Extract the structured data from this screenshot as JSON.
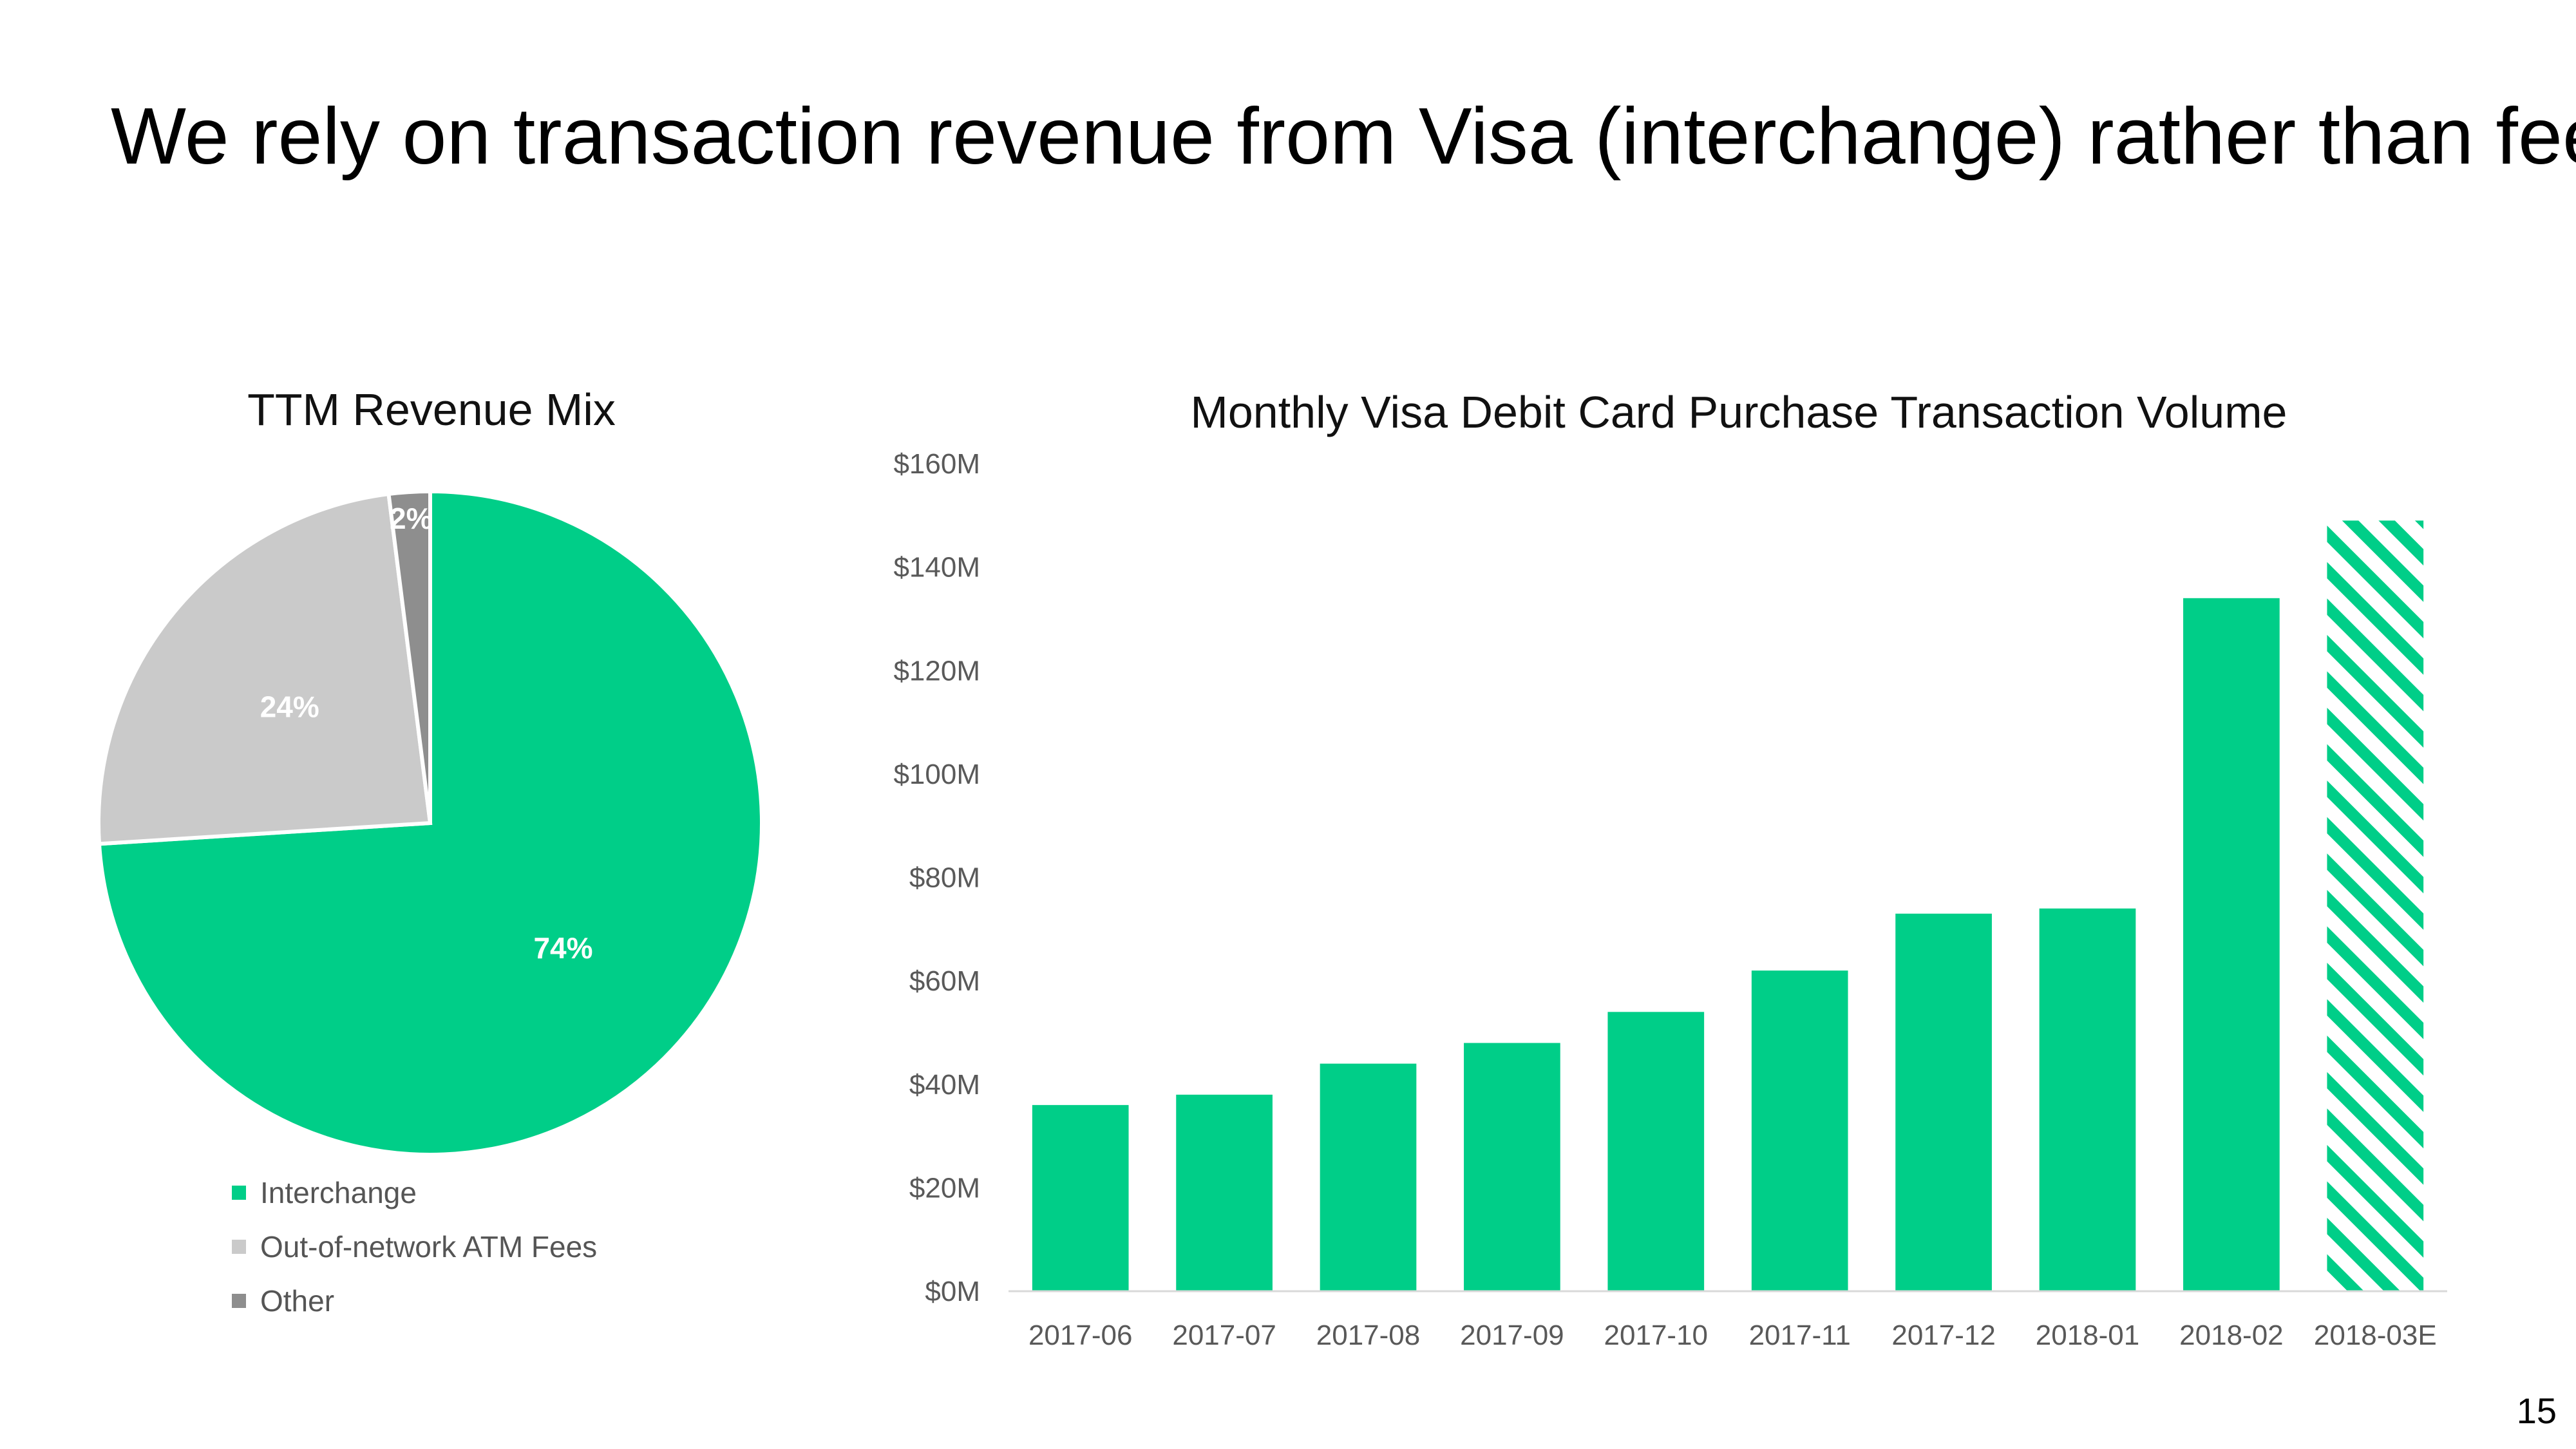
{
  "slide": {
    "title": "We rely on transaction revenue from Visa (interchange) rather than fees",
    "page_number": "15"
  },
  "colors": {
    "green": "#00CE88",
    "light_gray": "#CACACA",
    "dark_gray": "#8E8E8E",
    "axis_text": "#595959"
  },
  "chart_data": [
    {
      "type": "pie",
      "title": "TTM Revenue Mix",
      "slices": [
        {
          "name": "Interchange",
          "value": 74,
          "label": "74%",
          "color": "#00CE88"
        },
        {
          "name": "Out-of-network ATM Fees",
          "value": 24,
          "label": "24%",
          "color": "#CACACA"
        },
        {
          "name": "Other",
          "value": 2,
          "label": "2%",
          "color": "#8E8E8E"
        }
      ],
      "legend_position": "bottom-left"
    },
    {
      "type": "bar",
      "title": "Monthly Visa Debit Card Purchase Transaction Volume",
      "categories": [
        "2017-06",
        "2017-07",
        "2017-08",
        "2017-09",
        "2017-10",
        "2017-11",
        "2017-12",
        "2018-01",
        "2018-02",
        "2018-03E"
      ],
      "values": [
        36,
        38,
        44,
        48,
        54,
        62,
        73,
        74,
        134,
        149
      ],
      "estimated": [
        false,
        false,
        false,
        false,
        false,
        false,
        false,
        false,
        false,
        true
      ],
      "unit": "$M",
      "ylim": [
        0,
        160
      ],
      "yticks": [
        0,
        20,
        40,
        60,
        80,
        100,
        120,
        140,
        160
      ],
      "ytick_labels": [
        "$0M",
        "$20M",
        "$40M",
        "$60M",
        "$80M",
        "$100M",
        "$120M",
        "$140M",
        "$160M"
      ],
      "grid": false
    }
  ]
}
